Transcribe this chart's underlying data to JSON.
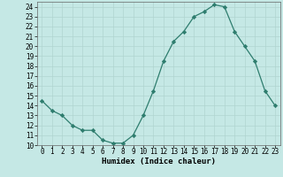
{
  "x": [
    0,
    1,
    2,
    3,
    4,
    5,
    6,
    7,
    8,
    9,
    10,
    11,
    12,
    13,
    14,
    15,
    16,
    17,
    18,
    19,
    20,
    21,
    22,
    23
  ],
  "y": [
    14.5,
    13.5,
    13.0,
    12.0,
    11.5,
    11.5,
    10.5,
    10.2,
    10.2,
    11.0,
    13.0,
    15.5,
    18.5,
    20.5,
    21.5,
    23.0,
    23.5,
    24.2,
    24.0,
    21.5,
    20.0,
    18.5,
    15.5,
    14.0
  ],
  "xlabel": "Humidex (Indice chaleur)",
  "ylim": [
    10,
    24.5
  ],
  "xlim": [
    -0.5,
    23.5
  ],
  "line_color": "#2e7d6e",
  "marker_color": "#2e7d6e",
  "bg_color": "#c5e8e5",
  "grid_color": "#b0d4d0",
  "yticks": [
    10,
    11,
    12,
    13,
    14,
    15,
    16,
    17,
    18,
    19,
    20,
    21,
    22,
    23,
    24
  ],
  "xticks": [
    0,
    1,
    2,
    3,
    4,
    5,
    6,
    7,
    8,
    9,
    10,
    11,
    12,
    13,
    14,
    15,
    16,
    17,
    18,
    19,
    20,
    21,
    22,
    23
  ],
  "tick_fontsize": 5.5,
  "label_fontsize": 6.5
}
